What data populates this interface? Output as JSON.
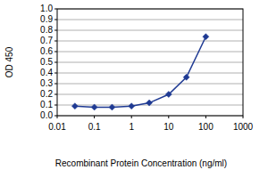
{
  "chart_data": {
    "type": "line",
    "log": "x",
    "x_label": "Recombinant Protein Concentration (ng/ml)",
    "y_label": "OD 450",
    "x": [
      0.03,
      0.1,
      0.3,
      1,
      3,
      10,
      30,
      100
    ],
    "values": [
      0.09,
      0.08,
      0.08,
      0.09,
      0.12,
      0.2,
      0.36,
      0.74
    ],
    "color": "#1f3a93",
    "marker": "diamond",
    "grid": true,
    "xlim": [
      0.01,
      1000
    ],
    "xticks": [
      0.01,
      0.1,
      1,
      10,
      100,
      1000
    ],
    "ylim": [
      0,
      1
    ],
    "yticks": [
      {
        "value": 0,
        "label": "0.0"
      },
      0.1,
      0.2,
      0.3,
      0.4,
      0.5,
      0.6,
      0.7,
      0.8,
      0.9,
      {
        "value": 1,
        "label": "1.0"
      }
    ]
  }
}
